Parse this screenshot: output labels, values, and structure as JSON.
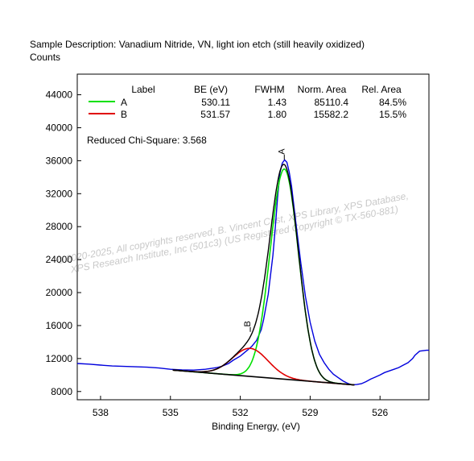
{
  "chart_data": {
    "type": "line",
    "title": "Sample Description:  Vanadium Nitride, VN, light ion etch (still heavily oxidized)",
    "ylabel": "Counts",
    "xlabel": "Binding Energy, (eV)",
    "xlim": [
      539,
      523.9
    ],
    "ylim": [
      7000,
      46500
    ],
    "x_ticks": [
      538,
      535,
      532,
      529,
      526
    ],
    "y_ticks": [
      8000,
      12000,
      16000,
      20000,
      24000,
      28000,
      32000,
      36000,
      40000,
      44000
    ],
    "table": {
      "headers": [
        "Label",
        "BE (eV)",
        "FWHM",
        "Norm. Area",
        "Rel. Area"
      ],
      "rows": [
        {
          "label": "A",
          "be": "530.11",
          "fwhm": "1.43",
          "area": "85110.4",
          "rel": "84.5%",
          "color": "#00e000"
        },
        {
          "label": "B",
          "be": "531.57",
          "fwhm": "1.80",
          "area": "15582.2",
          "rel": "15.5%",
          "color": "#e00000"
        }
      ]
    },
    "chi_square": "Reduced Chi-Square: 3.568",
    "peak_labels": [
      "A",
      "B"
    ],
    "background": {
      "x1": 534.9,
      "y1": 10600,
      "x2": 527.1,
      "y2": 8800,
      "color": "#000000"
    },
    "series": [
      {
        "name": "Raw data",
        "color": "#0000dd",
        "points": [
          [
            539.0,
            11400
          ],
          [
            538.5,
            11320
          ],
          [
            538.0,
            11200
          ],
          [
            537.5,
            11100
          ],
          [
            537.0,
            11050
          ],
          [
            536.5,
            11000
          ],
          [
            536.0,
            10950
          ],
          [
            535.5,
            10850
          ],
          [
            535.0,
            10700
          ],
          [
            534.5,
            10620
          ],
          [
            534.0,
            10600
          ],
          [
            533.5,
            10700
          ],
          [
            533.0,
            10900
          ],
          [
            532.8,
            11050
          ],
          [
            532.5,
            11400
          ],
          [
            532.3,
            11800
          ],
          [
            532.0,
            12300
          ],
          [
            531.7,
            13000
          ],
          [
            531.5,
            13500
          ],
          [
            531.3,
            14200
          ],
          [
            531.1,
            15500
          ],
          [
            531.0,
            16700
          ],
          [
            530.8,
            19800
          ],
          [
            530.6,
            24500
          ],
          [
            530.5,
            27800
          ],
          [
            530.4,
            31500
          ],
          [
            530.3,
            34500
          ],
          [
            530.2,
            35700
          ],
          [
            530.1,
            36100
          ],
          [
            530.0,
            35800
          ],
          [
            529.9,
            34600
          ],
          [
            529.8,
            32900
          ],
          [
            529.6,
            28200
          ],
          [
            529.4,
            23600
          ],
          [
            529.2,
            19500
          ],
          [
            529.0,
            16400
          ],
          [
            528.8,
            14100
          ],
          [
            528.6,
            12500
          ],
          [
            528.4,
            11500
          ],
          [
            528.2,
            10700
          ],
          [
            528.0,
            10100
          ],
          [
            527.8,
            9700
          ],
          [
            527.6,
            9300
          ],
          [
            527.4,
            9000
          ],
          [
            527.2,
            8800
          ],
          [
            527.0,
            8850
          ],
          [
            526.8,
            8950
          ],
          [
            526.6,
            9200
          ],
          [
            526.4,
            9500
          ],
          [
            526.2,
            9750
          ],
          [
            526.0,
            10000
          ],
          [
            525.8,
            10300
          ],
          [
            525.6,
            10500
          ],
          [
            525.4,
            10700
          ],
          [
            525.2,
            10900
          ],
          [
            525.0,
            11200
          ],
          [
            524.8,
            11500
          ],
          [
            524.6,
            12000
          ],
          [
            524.5,
            12400
          ],
          [
            524.3,
            12900
          ],
          [
            524.0,
            13000
          ],
          [
            523.9,
            13000
          ]
        ]
      }
    ],
    "components": [
      {
        "name": "A",
        "color": "#00e000",
        "center": 530.11,
        "fwhm": 1.43,
        "height": 25500,
        "x_from": 534.9,
        "x_to": 527.1
      },
      {
        "name": "B",
        "color": "#e00000",
        "center": 531.57,
        "fwhm": 1.8,
        "height": 3400,
        "x_from": 534.9,
        "x_to": 527.1
      }
    ],
    "envelope_color": "#000000",
    "watermark": {
      "line1": "© 2020-2025,  All copyrights reserved,   B. Vincent Crist,  XPS Library, XPS Database,",
      "line2": "XPS Research Institute, Inc (501c3)   (US Registered Copyright © TX-560-881)"
    }
  }
}
